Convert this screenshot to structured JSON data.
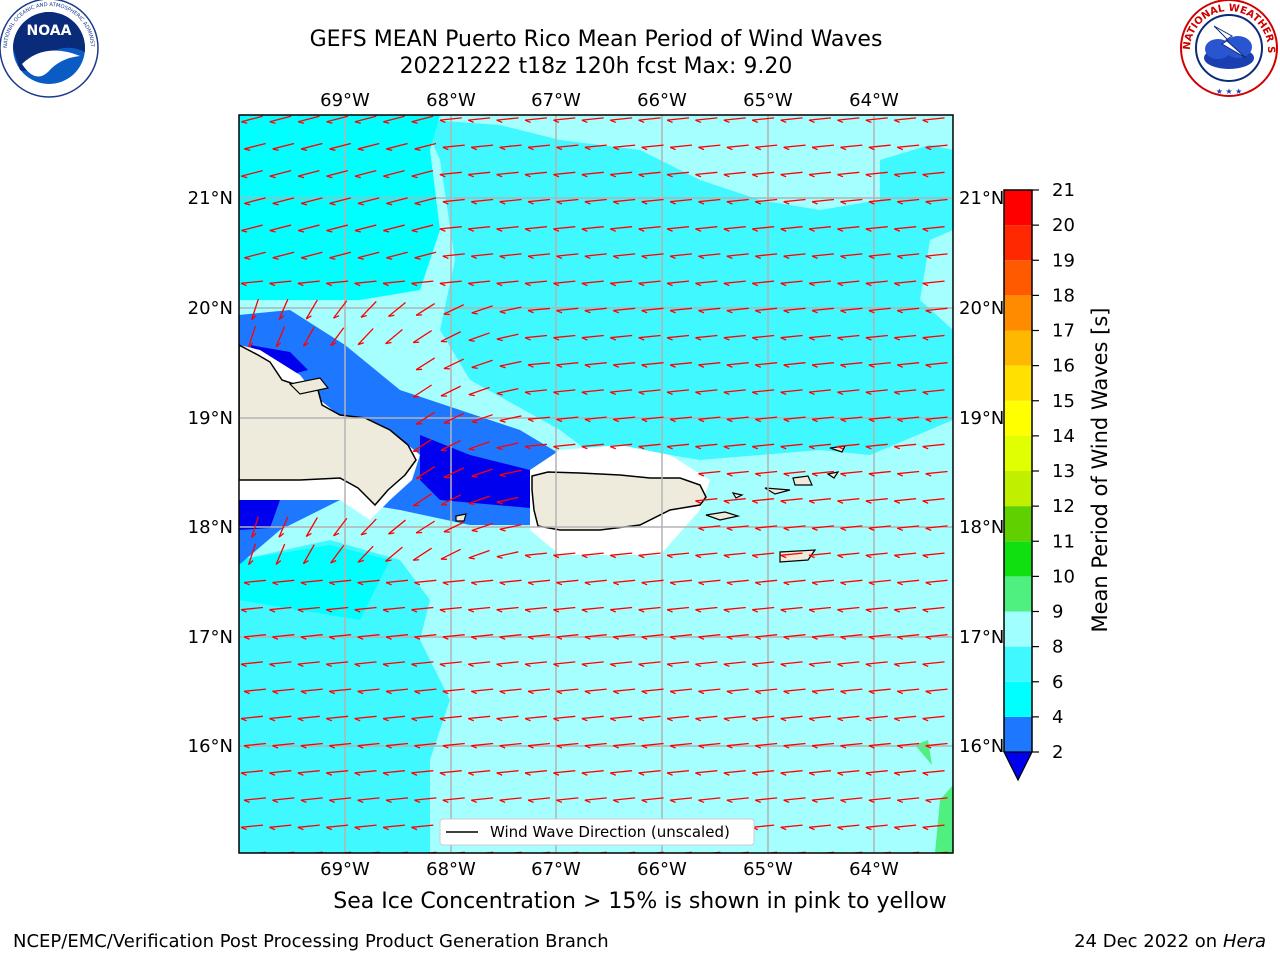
{
  "title_line1": "GEFS MEAN Puerto Rico Mean Period of Wind Waves",
  "title_line2": "20221222 t18z 120h fcst   Max: 9.20",
  "lon_ticks": [
    "69°W",
    "68°W",
    "67°W",
    "66°W",
    "65°W",
    "64°W"
  ],
  "lat_ticks": [
    "21°N",
    "20°N",
    "19°N",
    "18°N",
    "17°N",
    "16°N"
  ],
  "legend_label": "Wind Wave Direction (unscaled)",
  "colorbar": {
    "label": "Mean Period of Wind Waves [s]",
    "ticks": [
      "2",
      "4",
      "6",
      "8",
      "9",
      "10",
      "11",
      "12",
      "13",
      "14",
      "15",
      "16",
      "17",
      "18",
      "19",
      "20",
      "21"
    ],
    "colors": [
      "#0000ee",
      "#1e78ff",
      "#00ffff",
      "#40f8ff",
      "#a0ffff",
      "#50f080",
      "#10e010",
      "#60d000",
      "#c0f000",
      "#e0ff00",
      "#ffff00",
      "#ffe000",
      "#ffb800",
      "#ff8c00",
      "#ff5a00",
      "#ff2800",
      "#ff0000"
    ]
  },
  "ice_note": "Sea Ice Concentration > 15% is shown in pink to yellow",
  "footer_left": "NCEP/EMC/Verification Post Processing Product Generation Branch",
  "footer_date": "24 Dec 2022 on",
  "footer_host": "Hera",
  "logos": {
    "noaa_text": "NOAA",
    "noaa_ring": "NATIONAL OCEANIC AND ATMOSPHERIC ADMINISTRATION · U.S. DEPARTMENT OF COMMERCE",
    "nws_ring": "NATIONAL WEATHER SERVICE"
  },
  "colors": {
    "land": "#efebdc",
    "arrow": "#ff0000",
    "ocean_light": "#a6ffff"
  }
}
